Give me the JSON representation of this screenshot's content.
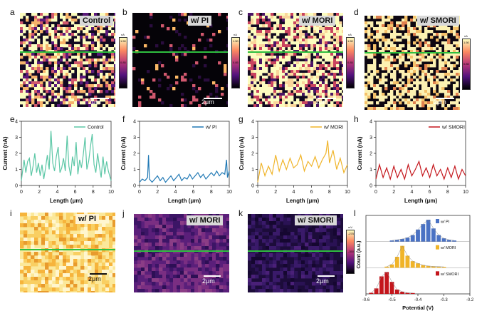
{
  "panel_letters": {
    "a": "a",
    "b": "b",
    "c": "c",
    "d": "d",
    "e": "e",
    "f": "f",
    "g": "g",
    "h": "h",
    "i": "i",
    "j": "j",
    "k": "k",
    "l": "l"
  },
  "maps": {
    "a": {
      "label": "Control",
      "scale": "2μm"
    },
    "b": {
      "label": "w/ PI",
      "scale": "2μm"
    },
    "c": {
      "label": "w/ MORI",
      "scale": "2μm"
    },
    "d": {
      "label": "w/ SMORI",
      "scale": "2μm"
    },
    "i": {
      "label": "w/ PI",
      "scale": "2μm"
    },
    "j": {
      "label": "w/ MORI",
      "scale": "2μm"
    },
    "k": {
      "label": "w/ SMORI",
      "scale": "2μm"
    }
  },
  "colorbar_current": {
    "unit": "nA",
    "max": "1.50",
    "mid": "0.85",
    "min": "0.00"
  },
  "colorbar_potential": {
    "unit": "mV",
    "max": "-275",
    "mid": "-350",
    "min": "-525"
  },
  "colors": {
    "control": "#5cc7a6",
    "pi": "#1f78b4",
    "mori": "#f0b429",
    "smori": "#c4161c",
    "line_green": "#2fbf3f"
  },
  "chart_data": [
    {
      "panel": "e",
      "type": "line",
      "xlabel": "Length (μm)",
      "ylabel": "Current (nA)",
      "xlim": [
        0,
        10
      ],
      "ylim": [
        0,
        4
      ],
      "xticks": [
        0,
        2,
        4,
        6,
        8,
        10
      ],
      "yticks": [
        0,
        1,
        2,
        3,
        4
      ],
      "series": [
        {
          "name": "Control",
          "color": "#5cc7a6",
          "x": [
            0,
            0.3,
            0.5,
            0.7,
            0.9,
            1.1,
            1.3,
            1.5,
            1.7,
            1.9,
            2.1,
            2.3,
            2.5,
            2.7,
            2.9,
            3.1,
            3.3,
            3.5,
            3.7,
            3.9,
            4.1,
            4.3,
            4.5,
            4.7,
            4.9,
            5.1,
            5.3,
            5.5,
            5.7,
            5.9,
            6.1,
            6.3,
            6.5,
            6.7,
            6.9,
            7.1,
            7.3,
            7.5,
            7.7,
            7.9,
            8.1,
            8.3,
            8.5,
            8.7,
            8.9,
            9.1,
            9.3,
            9.5,
            9.7,
            10
          ],
          "y": [
            0.3,
            1.6,
            0.8,
            1.5,
            1.7,
            0.6,
            1.2,
            2.0,
            0.8,
            1.4,
            0.6,
            1.3,
            0.4,
            1.1,
            1.9,
            1.0,
            3.4,
            1.4,
            0.9,
            1.8,
            2.4,
            0.8,
            1.1,
            1.7,
            0.9,
            3.1,
            1.2,
            0.6,
            1.8,
            1.2,
            2.7,
            0.7,
            1.6,
            1.1,
            1.9,
            3.0,
            1.0,
            1.5,
            2.4,
            3.2,
            1.3,
            0.8,
            2.0,
            1.2,
            0.5,
            1.8,
            0.7,
            1.5,
            0.9,
            0.3
          ]
        }
      ]
    },
    {
      "panel": "f",
      "type": "line",
      "xlabel": "Length (μm)",
      "ylabel": "Current (nA)",
      "xlim": [
        0,
        10
      ],
      "ylim": [
        0,
        4
      ],
      "xticks": [
        0,
        2,
        4,
        6,
        8,
        10
      ],
      "yticks": [
        0,
        1,
        2,
        3,
        4
      ],
      "series": [
        {
          "name": "w/ PI",
          "color": "#1f78b4",
          "x": [
            0,
            0.3,
            0.6,
            0.9,
            1.0,
            1.1,
            1.4,
            1.7,
            2.0,
            2.3,
            2.6,
            2.9,
            3.2,
            3.5,
            3.8,
            4.1,
            4.4,
            4.7,
            5.0,
            5.3,
            5.6,
            5.9,
            6.2,
            6.5,
            6.8,
            7.1,
            7.4,
            7.7,
            8.0,
            8.3,
            8.6,
            8.9,
            9.2,
            9.5,
            9.7,
            9.8,
            10
          ],
          "y": [
            0.2,
            0.4,
            0.3,
            0.5,
            1.9,
            0.4,
            0.2,
            0.4,
            0.6,
            0.3,
            0.5,
            0.2,
            0.4,
            0.6,
            0.3,
            0.5,
            0.7,
            0.3,
            0.5,
            0.4,
            0.7,
            0.4,
            0.6,
            0.8,
            0.5,
            0.7,
            0.4,
            0.6,
            0.8,
            0.6,
            0.9,
            0.6,
            0.8,
            0.7,
            1.6,
            0.5,
            0.9
          ]
        }
      ]
    },
    {
      "panel": "g",
      "type": "line",
      "xlabel": "Length (μm)",
      "ylabel": "Current (nA)",
      "xlim": [
        0,
        10
      ],
      "ylim": [
        0,
        4
      ],
      "xticks": [
        0,
        2,
        4,
        6,
        8,
        10
      ],
      "yticks": [
        0,
        1,
        2,
        3,
        4
      ],
      "series": [
        {
          "name": "w/ MORI",
          "color": "#f0b429",
          "x": [
            0,
            0.4,
            0.8,
            1.2,
            1.6,
            2.0,
            2.4,
            2.8,
            3.2,
            3.6,
            4.0,
            4.4,
            4.8,
            5.2,
            5.6,
            6.0,
            6.4,
            6.8,
            7.2,
            7.6,
            7.8,
            8.0,
            8.4,
            8.8,
            9.2,
            9.6,
            10
          ],
          "y": [
            0.2,
            1.4,
            0.6,
            1.2,
            0.7,
            1.9,
            0.9,
            1.6,
            1.0,
            1.7,
            1.1,
            1.3,
            1.9,
            0.9,
            1.5,
            1.2,
            1.8,
            1.1,
            1.6,
            2.0,
            2.8,
            1.4,
            2.2,
            1.0,
            1.7,
            0.8,
            1.3
          ]
        }
      ]
    },
    {
      "panel": "h",
      "type": "line",
      "xlabel": "Length (μm)",
      "ylabel": "Current (nA)",
      "xlim": [
        0,
        10
      ],
      "ylim": [
        0,
        4
      ],
      "xticks": [
        0,
        2,
        4,
        6,
        8,
        10
      ],
      "yticks": [
        0,
        1,
        2,
        3,
        4
      ],
      "series": [
        {
          "name": "w/ SMORI",
          "color": "#c4161c",
          "x": [
            0,
            0.4,
            0.8,
            1.2,
            1.6,
            2.0,
            2.4,
            2.8,
            3.2,
            3.6,
            4.0,
            4.4,
            4.8,
            5.2,
            5.6,
            6.0,
            6.4,
            6.8,
            7.2,
            7.6,
            8.0,
            8.4,
            8.8,
            9.2,
            9.6,
            10
          ],
          "y": [
            0.4,
            1.3,
            0.5,
            1.1,
            0.4,
            1.2,
            0.5,
            1.0,
            0.4,
            1.3,
            0.6,
            1.0,
            1.5,
            0.6,
            1.1,
            0.5,
            1.3,
            0.6,
            1.0,
            0.4,
            1.1,
            0.5,
            1.2,
            0.4,
            1.0,
            0.6
          ]
        }
      ]
    },
    {
      "panel": "l",
      "type": "bar",
      "xlabel": "Potential (V)",
      "ylabel": "Count (a.u.)",
      "xlim": [
        -0.6,
        -0.2
      ],
      "xticks": [
        -0.6,
        -0.5,
        -0.4,
        -0.3,
        -0.2
      ],
      "series": [
        {
          "name": "w/ PI",
          "color": "#4a72c4",
          "x": [
            -0.5,
            -0.48,
            -0.46,
            -0.44,
            -0.42,
            -0.4,
            -0.38,
            -0.36,
            -0.34,
            -0.32,
            -0.3,
            -0.28,
            -0.26
          ],
          "values": [
            0.05,
            0.08,
            0.12,
            0.18,
            0.3,
            0.55,
            0.8,
            1.0,
            0.6,
            0.3,
            0.15,
            0.08,
            0.05
          ]
        },
        {
          "name": "w/ MORI",
          "color": "#f0b429",
          "x": [
            -0.52,
            -0.5,
            -0.48,
            -0.46,
            -0.44,
            -0.42,
            -0.4,
            -0.38,
            -0.36,
            -0.34,
            -0.32,
            -0.3
          ],
          "values": [
            0.05,
            0.15,
            0.5,
            1.0,
            0.55,
            0.3,
            0.2,
            0.12,
            0.08,
            0.06,
            0.05,
            0.04
          ]
        },
        {
          "name": "w/ SMORI",
          "color": "#c4161c",
          "x": [
            -0.58,
            -0.56,
            -0.54,
            -0.52,
            -0.5,
            -0.48,
            -0.46,
            -0.44,
            -0.42
          ],
          "values": [
            0.05,
            0.25,
            0.8,
            1.0,
            0.55,
            0.2,
            0.1,
            0.05,
            0.04
          ]
        }
      ]
    }
  ]
}
